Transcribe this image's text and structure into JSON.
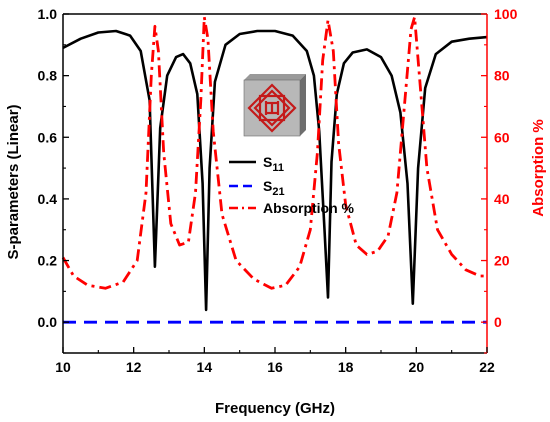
{
  "chart_data": {
    "type": "line",
    "xlabel": "Frequency (GHz)",
    "ylabel_left": "S-parameters (Linear)",
    "ylabel_right": "Absorption %",
    "xlim": [
      10,
      22
    ],
    "ylim_left": [
      -0.1,
      1.0
    ],
    "ylim_right": [
      -10,
      100
    ],
    "x_ticks": [
      "10",
      "12",
      "14",
      "16",
      "18",
      "20",
      "22"
    ],
    "y_left_ticks": [
      "0.0",
      "0.2",
      "0.4",
      "0.6",
      "0.8",
      "1.0"
    ],
    "y_right_ticks": [
      "0",
      "20",
      "40",
      "60",
      "80",
      "100"
    ],
    "legend_position": "center",
    "series": [
      {
        "name": "S",
        "name_sub": "11",
        "axis": "left",
        "color": "#000000",
        "style": "solid",
        "x": [
          10,
          10.5,
          11,
          11.5,
          11.9,
          12.2,
          12.45,
          12.6,
          12.75,
          12.95,
          13.2,
          13.4,
          13.6,
          13.8,
          13.95,
          14.05,
          14.15,
          14.3,
          14.6,
          15,
          15.5,
          16,
          16.5,
          16.9,
          17.1,
          17.25,
          17.4,
          17.5,
          17.6,
          17.75,
          17.95,
          18.2,
          18.6,
          19,
          19.3,
          19.55,
          19.75,
          19.9,
          20.05,
          20.25,
          20.55,
          21,
          21.5,
          22
        ],
        "y": [
          0.89,
          0.92,
          0.94,
          0.945,
          0.93,
          0.88,
          0.72,
          0.18,
          0.63,
          0.8,
          0.86,
          0.87,
          0.84,
          0.74,
          0.45,
          0.04,
          0.5,
          0.78,
          0.9,
          0.935,
          0.945,
          0.945,
          0.93,
          0.88,
          0.8,
          0.62,
          0.3,
          0.08,
          0.52,
          0.74,
          0.84,
          0.875,
          0.885,
          0.86,
          0.8,
          0.68,
          0.45,
          0.06,
          0.5,
          0.76,
          0.87,
          0.91,
          0.92,
          0.925
        ]
      },
      {
        "name": "S",
        "name_sub": "21",
        "axis": "left",
        "color": "#0000ff",
        "style": "dashed",
        "x": [
          10,
          22
        ],
        "y": [
          0,
          0
        ]
      },
      {
        "name": "Absorption %",
        "axis": "right",
        "color": "#ff0000",
        "style": "dash-dot",
        "x": [
          10,
          10.3,
          10.7,
          11.2,
          11.7,
          12.1,
          12.35,
          12.5,
          12.6,
          12.7,
          12.85,
          13.05,
          13.3,
          13.55,
          13.75,
          13.9,
          14.0,
          14.1,
          14.25,
          14.5,
          14.9,
          15.4,
          15.9,
          16.3,
          16.7,
          17.0,
          17.2,
          17.35,
          17.5,
          17.65,
          17.8,
          18.0,
          18.3,
          18.6,
          18.9,
          19.2,
          19.45,
          19.7,
          19.85,
          19.95,
          20.1,
          20.3,
          20.6,
          21.0,
          21.4,
          21.8,
          22
        ],
        "y": [
          21,
          15,
          12,
          11,
          13,
          20,
          42,
          80,
          96,
          88,
          55,
          32,
          25,
          26,
          42,
          72,
          99,
          92,
          62,
          35,
          20,
          14,
          11,
          12,
          18,
          30,
          55,
          85,
          98,
          88,
          58,
          38,
          25,
          22,
          23,
          28,
          42,
          75,
          95,
          99,
          78,
          50,
          30,
          22,
          17,
          15,
          15
        ]
      }
    ]
  },
  "legend": {
    "items": [
      {
        "label": "S",
        "sub": "11"
      },
      {
        "label": "S",
        "sub": "21"
      },
      {
        "label": "Absorption %",
        "sub": ""
      }
    ]
  },
  "inset": {
    "description_icon": "unit-cell-image"
  }
}
